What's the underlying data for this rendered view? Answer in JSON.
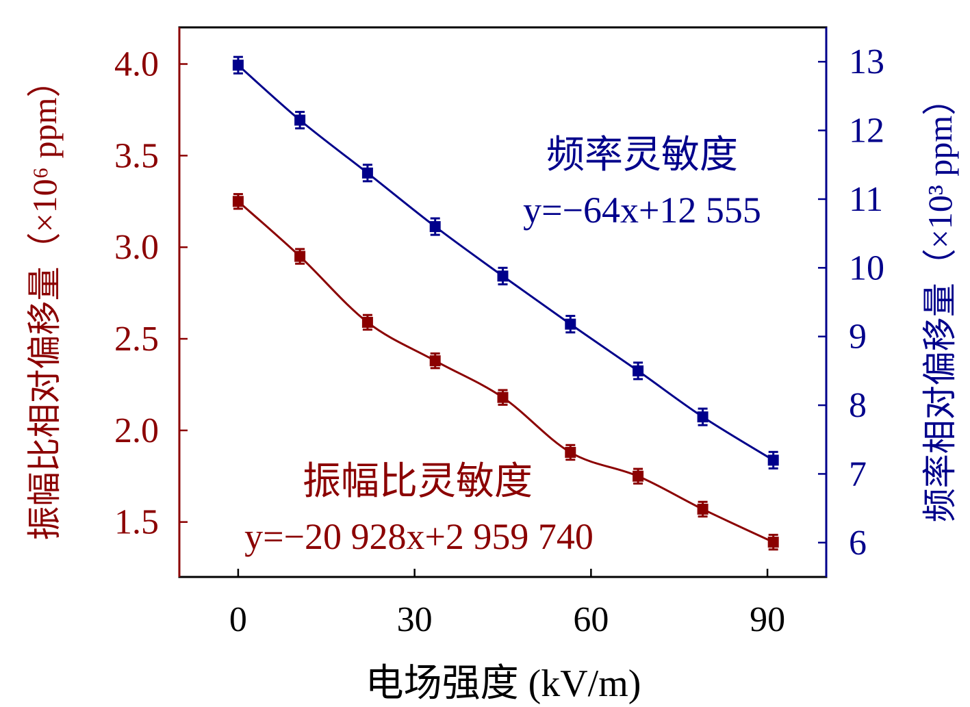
{
  "chart_data": {
    "type": "scatter",
    "xlabel": "电场强度 (kV/m)",
    "xlim": [
      -10,
      100
    ],
    "xticks": [
      0,
      30,
      60,
      90
    ],
    "colors": {
      "amplitude": "#8b0000",
      "frequency": "#00008b",
      "frame": "#000000"
    },
    "series": [
      {
        "name": "振幅比灵敏度",
        "axis": "left",
        "ylabel": "振幅比相对偏移量（×10⁶ ppm）",
        "ylim": [
          1.2,
          4.2
        ],
        "yticks": [
          "1.5",
          "2.0",
          "2.5",
          "3.0",
          "3.5",
          "4.0"
        ],
        "x": [
          0,
          10.5,
          22,
          33.5,
          45,
          56.5,
          68,
          79,
          91
        ],
        "values": [
          3.25,
          2.95,
          2.59,
          2.38,
          2.18,
          1.88,
          1.75,
          1.57,
          1.39
        ],
        "error": [
          0.04,
          0.04,
          0.04,
          0.04,
          0.04,
          0.04,
          0.04,
          0.04,
          0.04
        ],
        "equation": "y=−20 928x+2 959 740",
        "label": "振幅比灵敏度"
      },
      {
        "name": "频率灵敏度",
        "axis": "right",
        "ylabel": "频率相对偏移量（×10³ ppm）",
        "ylim": [
          5.5,
          13.5
        ],
        "yticks": [
          "6",
          "7",
          "8",
          "9",
          "10",
          "11",
          "12",
          "13"
        ],
        "x": [
          0,
          10.5,
          22,
          33.5,
          45,
          56.5,
          68,
          79,
          91
        ],
        "values": [
          12.95,
          12.15,
          11.38,
          10.6,
          9.88,
          9.18,
          8.5,
          7.83,
          7.2
        ],
        "error": [
          0.12,
          0.12,
          0.12,
          0.12,
          0.12,
          0.12,
          0.12,
          0.12,
          0.12
        ],
        "equation": "y=−64x+12 555",
        "label": "频率灵敏度"
      }
    ]
  }
}
